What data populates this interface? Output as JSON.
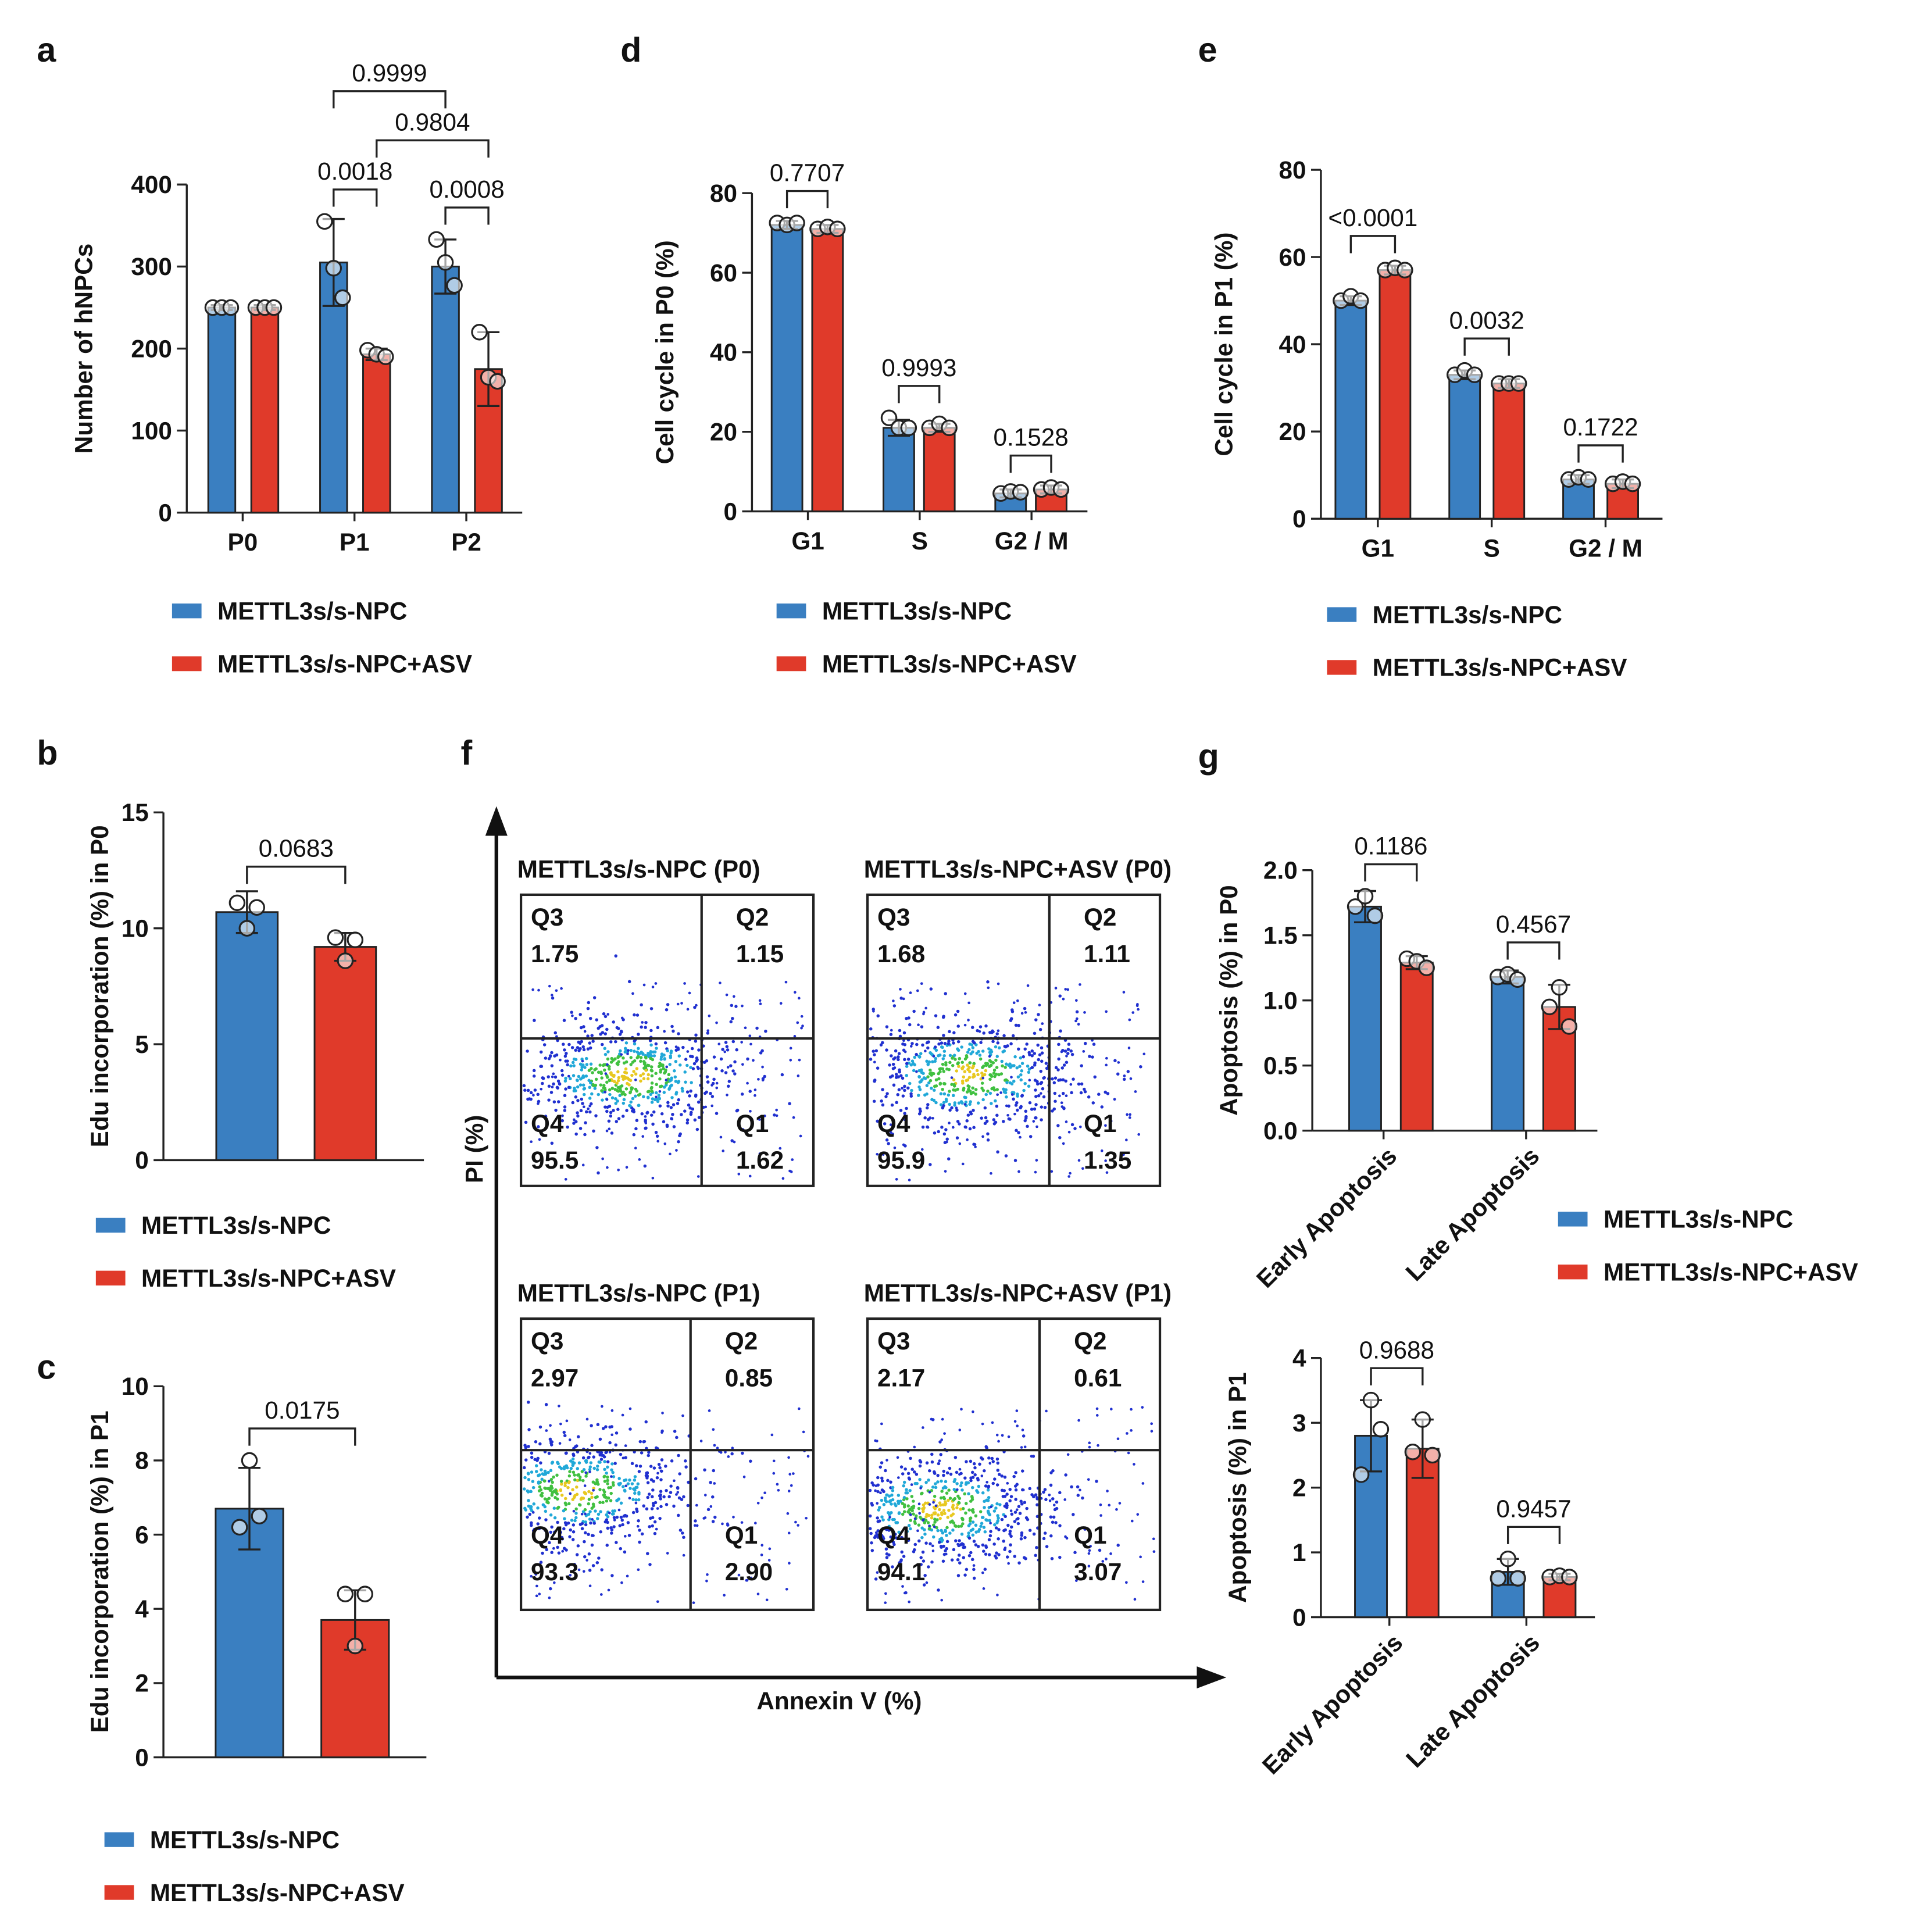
{
  "chart_data": [
    {
      "type": "bar",
      "panel": "a",
      "ylabel": "Number of hNPCs",
      "categories": [
        "P0",
        "P1",
        "P2"
      ],
      "series": [
        {
          "name": "METTL3s/s-NPC",
          "color": "#3a7fc1",
          "values": [
            250,
            305,
            300
          ],
          "errors": [
            3,
            53,
            33
          ],
          "points": [
            [
              250,
              250,
              250
            ],
            [
              355,
              298,
              262
            ],
            [
              333,
              305,
              277
            ]
          ]
        },
        {
          "name": "METTL3s/s-NPC+ASV",
          "color": "#e03a2a",
          "values": [
            250,
            193,
            175
          ],
          "errors": [
            3,
            7,
            45
          ],
          "points": [
            [
              250,
              250,
              250
            ],
            [
              198,
              193,
              190
            ],
            [
              220,
              165,
              160
            ]
          ]
        }
      ],
      "ylim": [
        0,
        400
      ],
      "yticks": [
        0,
        100,
        200,
        300,
        400
      ],
      "annotations": [
        {
          "text": "0.0018",
          "from": [
            0,
            1
          ],
          "to": [
            1,
            1
          ]
        },
        {
          "text": "0.0008",
          "from": [
            0,
            2
          ],
          "to": [
            1,
            2
          ]
        },
        {
          "text": "0.9804",
          "from": [
            1,
            1
          ],
          "to": [
            1,
            2
          ]
        },
        {
          "text": "0.9999",
          "from": [
            0,
            1
          ],
          "to": [
            0,
            2
          ]
        }
      ]
    },
    {
      "type": "bar",
      "panel": "b",
      "ylabel": "Edu incorporation (%) in P0",
      "series": [
        {
          "name": "METTL3s/s-NPC",
          "color": "#3a7fc1",
          "values": [
            10.7
          ],
          "errors": [
            0.9
          ],
          "points": [
            [
              11.1,
              10.0,
              10.9
            ]
          ]
        },
        {
          "name": "METTL3s/s-NPC+ASV",
          "color": "#e03a2a",
          "values": [
            9.2
          ],
          "errors": [
            0.6
          ],
          "points": [
            [
              9.6,
              8.6,
              9.5
            ]
          ]
        }
      ],
      "ylim": [
        0,
        15
      ],
      "yticks": [
        0,
        5,
        10,
        15
      ],
      "annotations": [
        {
          "text": "0.0683",
          "from": [
            0,
            0
          ],
          "to": [
            1,
            0
          ]
        }
      ]
    },
    {
      "type": "bar",
      "panel": "c",
      "ylabel": "Edu incorporation (%) in P1",
      "series": [
        {
          "name": "METTL3s/s-NPC",
          "color": "#3a7fc1",
          "values": [
            6.7
          ],
          "errors": [
            1.1
          ],
          "points": [
            [
              6.2,
              8.0,
              6.5
            ]
          ]
        },
        {
          "name": "METTL3s/s-NPC+ASV",
          "color": "#e03a2a",
          "values": [
            3.7
          ],
          "errors": [
            0.8
          ],
          "points": [
            [
              4.4,
              3.0,
              4.4
            ]
          ]
        }
      ],
      "ylim": [
        0,
        10
      ],
      "yticks": [
        0,
        2,
        4,
        6,
        8,
        10
      ],
      "annotations": [
        {
          "text": "0.0175",
          "from": [
            0,
            0
          ],
          "to": [
            1,
            0
          ]
        }
      ]
    },
    {
      "type": "bar",
      "panel": "d",
      "ylabel": "Cell cycle in P0 (%)",
      "categories": [
        "G1",
        "S",
        "G2 / M"
      ],
      "series": [
        {
          "name": "METTL3s/s-NPC",
          "color": "#3a7fc1",
          "values": [
            72,
            21,
            4.5
          ],
          "errors": [
            1,
            2,
            1
          ],
          "points": [
            [
              72.5,
              72,
              72.5
            ],
            [
              23.5,
              21,
              21
            ],
            [
              4.5,
              5,
              4.8
            ]
          ]
        },
        {
          "name": "METTL3s/s-NPC+ASV",
          "color": "#e03a2a",
          "values": [
            71,
            21,
            5.5
          ],
          "errors": [
            1,
            1,
            1
          ],
          "points": [
            [
              71,
              71.5,
              71
            ],
            [
              21,
              22,
              21
            ],
            [
              5.5,
              6,
              5.5
            ]
          ]
        }
      ],
      "ylim": [
        0,
        80
      ],
      "yticks": [
        0,
        20,
        40,
        60,
        80
      ],
      "annotations": [
        {
          "text": "0.7707",
          "from": [
            0,
            0
          ],
          "to": [
            1,
            0
          ]
        },
        {
          "text": "0.9993",
          "from": [
            0,
            1
          ],
          "to": [
            1,
            1
          ]
        },
        {
          "text": "0.1528",
          "from": [
            0,
            2
          ],
          "to": [
            1,
            2
          ]
        }
      ]
    },
    {
      "type": "bar",
      "panel": "e",
      "ylabel": "Cell cycle in P1 (%)",
      "categories": [
        "G1",
        "S",
        "G2 / M"
      ],
      "series": [
        {
          "name": "METTL3s/s-NPC",
          "color": "#3a7fc1",
          "values": [
            50,
            33,
            9
          ],
          "errors": [
            1,
            1,
            1
          ],
          "points": [
            [
              50,
              51,
              50
            ],
            [
              33,
              34,
              33
            ],
            [
              9,
              9.5,
              9
            ]
          ]
        },
        {
          "name": "METTL3s/s-NPC+ASV",
          "color": "#e03a2a",
          "values": [
            57,
            31,
            8
          ],
          "errors": [
            1,
            1,
            1
          ],
          "points": [
            [
              57,
              57.5,
              57
            ],
            [
              31,
              31,
              31
            ],
            [
              8,
              8.5,
              8
            ]
          ]
        }
      ],
      "ylim": [
        0,
        80
      ],
      "yticks": [
        0,
        20,
        40,
        60,
        80
      ],
      "annotations": [
        {
          "text": "<0.0001",
          "from": [
            0,
            0
          ],
          "to": [
            1,
            0
          ]
        },
        {
          "text": "0.0032",
          "from": [
            0,
            1
          ],
          "to": [
            1,
            1
          ]
        },
        {
          "text": "0.1722",
          "from": [
            0,
            2
          ],
          "to": [
            1,
            2
          ]
        }
      ]
    },
    {
      "type": "flow",
      "panel": "f",
      "xlabel": "Annexin V (%)",
      "ylabel": "PI (%)",
      "panels": [
        {
          "title": "METTL3s/s-NPC (P0)",
          "quadrants": [
            {
              "name": "Q3",
              "value": 1.75
            },
            {
              "name": "Q2",
              "value": 1.15
            },
            {
              "name": "Q4",
              "value": 95.5
            },
            {
              "name": "Q1",
              "value": 1.62
            }
          ]
        },
        {
          "title": "METTL3s/s-NPC+ASV (P0)",
          "quadrants": [
            {
              "name": "Q3",
              "value": 1.68
            },
            {
              "name": "Q2",
              "value": 1.11
            },
            {
              "name": "Q4",
              "value": 95.9
            },
            {
              "name": "Q1",
              "value": 1.35
            }
          ]
        },
        {
          "title": "METTL3s/s-NPC (P1)",
          "quadrants": [
            {
              "name": "Q3",
              "value": 2.97
            },
            {
              "name": "Q2",
              "value": 0.85
            },
            {
              "name": "Q4",
              "value": 93.3
            },
            {
              "name": "Q1",
              "value": 2.9,
              "label": "2.90"
            }
          ]
        },
        {
          "title": "METTL3s/s-NPC+ASV (P1)",
          "quadrants": [
            {
              "name": "Q3",
              "value": 2.17
            },
            {
              "name": "Q2",
              "value": 0.61
            },
            {
              "name": "Q4",
              "value": 94.1
            },
            {
              "name": "Q1",
              "value": 3.07
            }
          ]
        }
      ]
    },
    {
      "type": "bar",
      "panel": "g",
      "ylabel": "Apoptosis (%) in P0",
      "categories": [
        "Early Apoptosis",
        "Late Apoptosis"
      ],
      "series": [
        {
          "name": "METTL3s/s-NPC",
          "color": "#3a7fc1",
          "values": [
            1.72,
            1.18
          ],
          "errors": [
            0.12,
            0.05
          ],
          "points": [
            [
              1.72,
              1.8,
              1.65
            ],
            [
              1.18,
              1.2,
              1.16
            ]
          ]
        },
        {
          "name": "METTL3s/s-NPC+ASV",
          "color": "#e03a2a",
          "values": [
            1.29,
            0.95
          ],
          "errors": [
            0.05,
            0.17
          ],
          "points": [
            [
              1.32,
              1.3,
              1.25
            ],
            [
              0.95,
              1.1,
              0.8
            ]
          ]
        }
      ],
      "ylim": [
        0,
        2
      ],
      "yticks": [
        {
          "value": 0,
          "label": "0.0"
        },
        0.5,
        {
          "value": 1,
          "label": "1.0"
        },
        1.5,
        {
          "value": 2,
          "label": "2.0"
        }
      ],
      "annotations": [
        {
          "text": "0.1186",
          "from": [
            0,
            0
          ],
          "to": [
            1,
            0
          ]
        },
        {
          "text": "0.4567",
          "from": [
            0,
            1
          ],
          "to": [
            1,
            1
          ]
        }
      ]
    },
    {
      "type": "bar",
      "ylabel": "Apoptosis (%) in P1",
      "categories": [
        "Early Apoptosis",
        "Late Apoptosis"
      ],
      "series": [
        {
          "color": "#3a7fc1",
          "values": [
            2.8,
            0.7
          ],
          "errors": [
            0.55,
            0.2
          ],
          "points": [
            [
              2.2,
              3.35,
              2.9
            ],
            [
              0.6,
              0.9,
              0.6
            ]
          ]
        },
        {
          "color": "#e03a2a",
          "values": [
            2.6,
            0.62
          ],
          "errors": [
            0.45,
            0.05
          ],
          "points": [
            [
              2.55,
              3.05,
              2.5
            ],
            [
              0.62,
              0.64,
              0.62
            ]
          ]
        }
      ],
      "ylim": [
        0,
        4
      ],
      "yticks": [
        0,
        1,
        2,
        3,
        4
      ],
      "annotations": [
        {
          "text": "0.9688",
          "from": [
            0,
            0
          ],
          "to": [
            1,
            0
          ]
        },
        {
          "text": "0.9457",
          "from": [
            0,
            1
          ],
          "to": [
            1,
            1
          ]
        }
      ]
    }
  ]
}
